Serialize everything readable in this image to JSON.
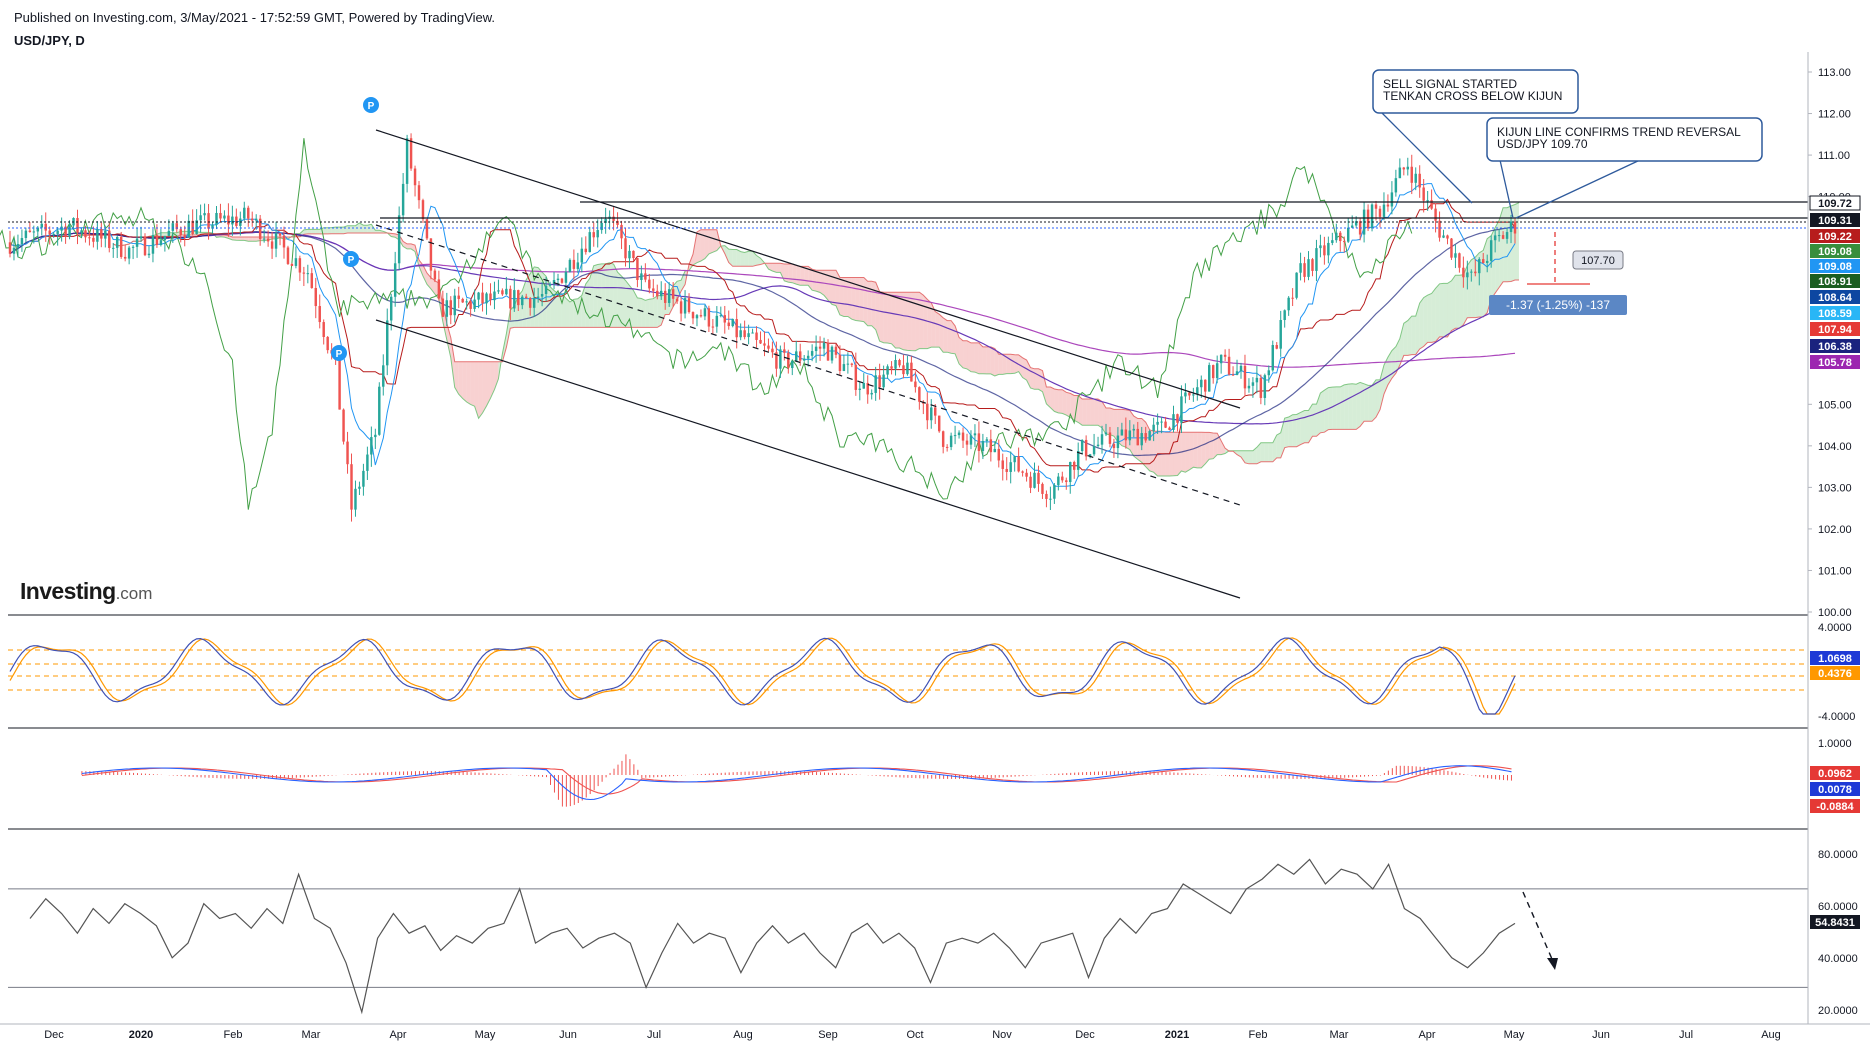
{
  "header": {
    "published": "Published on Investing.com, 3/May/2021 - 17:52:59 GMT, Powered by TradingView.",
    "symbol": "USD/JPY, D"
  },
  "logo": {
    "word": "Investing",
    "suffix": ".com"
  },
  "colors": {
    "up": "#26a69a",
    "down": "#ef5350",
    "tenkan": "#2196f3",
    "kijun": "#b71c1c",
    "lagging": "#43a047",
    "cloud_bull": "#a5d6a7",
    "cloud_bear": "#ef9a9a",
    "sma50": "#1a237e",
    "sma100": "#673ab7",
    "sma200": "#ab47bc"
  },
  "chart_data": [
    {
      "type": "candlestick",
      "panel": "price",
      "symbol": "USD/JPY",
      "interval": "D",
      "price_axis": {
        "min": 100,
        "max": 113,
        "ticks": [
          "113.00",
          "112.00",
          "111.00",
          "110.00",
          "105.00",
          "104.00",
          "103.00",
          "102.00",
          "101.00",
          "100.00"
        ]
      },
      "time_axis": [
        "Dec",
        "2020",
        "Feb",
        "Mar",
        "Apr",
        "May",
        "Jun",
        "Jul",
        "Aug",
        "Sep",
        "Oct",
        "Nov",
        "Dec",
        "2021",
        "Feb",
        "Mar",
        "Apr",
        "May",
        "Jun",
        "Jul",
        "Aug"
      ],
      "price_labels": [
        {
          "value": 109.72,
          "text": "109.72",
          "color": "#ffffff",
          "bg": "#ffffff",
          "fg": "#131722"
        },
        {
          "value": 109.31,
          "text": "109.31",
          "bg": "#131722",
          "fg": "#ffffff"
        },
        {
          "value": 109.22,
          "text": "109.22",
          "bg": "#b71c1c",
          "fg": "#ffffff"
        },
        {
          "value": 109.08,
          "text": "109.08",
          "bg": "#388e3c",
          "fg": "#ffffff"
        },
        {
          "value": 109.08,
          "text": "109.08",
          "bg": "#2196f3",
          "fg": "#ffffff"
        },
        {
          "value": 108.91,
          "text": "108.91",
          "bg": "#1b5e20",
          "fg": "#ffffff"
        },
        {
          "value": 108.64,
          "text": "108.64",
          "bg": "#0d47a1",
          "fg": "#ffffff"
        },
        {
          "value": 108.59,
          "text": "108.59",
          "bg": "#29b6f6",
          "fg": "#ffffff"
        },
        {
          "value": 107.94,
          "text": "107.94",
          "bg": "#e53935",
          "fg": "#ffffff"
        },
        {
          "value": 106.38,
          "text": "106.38",
          "bg": "#1a237e",
          "fg": "#ffffff"
        },
        {
          "value": 105.78,
          "text": "105.78",
          "bg": "#9c27b0",
          "fg": "#ffffff"
        }
      ],
      "annotations": [
        {
          "text": [
            "SELL SIGNAL STARTED",
            "TENKAN CROSS BELOW KIJUN"
          ]
        },
        {
          "text": [
            "KIJUN LINE CONFIRMS TREND REVERSAL",
            "USD/JPY 109.70"
          ]
        },
        {
          "text": [
            "107.70"
          ]
        },
        {
          "text": [
            "-1.37 (-1.25%) -137"
          ]
        }
      ],
      "event_markers": [
        "P",
        "P",
        "P"
      ]
    },
    {
      "type": "line",
      "panel": "oscillator",
      "axis_ticks": [
        "4.0000",
        "-4.0000"
      ],
      "labels": [
        {
          "text": "1.0698",
          "bg": "#1e3ad6"
        },
        {
          "text": "0.4376",
          "bg": "#ff9800"
        }
      ]
    },
    {
      "type": "line",
      "panel": "macd",
      "axis_ticks": [
        "1.0000"
      ],
      "labels": [
        {
          "text": "0.0962",
          "bg": "#e53935"
        },
        {
          "text": "0.0078",
          "bg": "#1e3ad6"
        },
        {
          "text": "-0.0884",
          "bg": "#e53935"
        }
      ]
    },
    {
      "type": "line",
      "panel": "rsi",
      "axis_ticks": [
        "80.0000",
        "60.0000",
        "40.0000",
        "20.0000"
      ],
      "bands": [
        70,
        30
      ],
      "labels": [
        {
          "text": "54.8431",
          "bg": "#131722"
        }
      ],
      "path": [
        [
          0,
          58
        ],
        [
          1,
          66
        ],
        [
          2,
          60
        ],
        [
          3,
          52
        ],
        [
          4,
          62
        ],
        [
          5,
          56
        ],
        [
          6,
          64
        ],
        [
          7,
          60
        ],
        [
          8,
          55
        ],
        [
          9,
          42
        ],
        [
          10,
          48
        ],
        [
          11,
          64
        ],
        [
          12,
          58
        ],
        [
          13,
          60
        ],
        [
          14,
          54
        ],
        [
          15,
          62
        ],
        [
          16,
          56
        ],
        [
          17,
          76
        ],
        [
          18,
          58
        ],
        [
          19,
          54
        ],
        [
          20,
          40
        ],
        [
          21,
          20
        ],
        [
          22,
          50
        ],
        [
          23,
          60
        ],
        [
          24,
          52
        ],
        [
          25,
          55
        ],
        [
          26,
          45
        ],
        [
          27,
          51
        ],
        [
          28,
          48
        ],
        [
          29,
          54
        ],
        [
          30,
          56
        ],
        [
          31,
          70
        ],
        [
          32,
          48
        ],
        [
          33,
          52
        ],
        [
          34,
          54
        ],
        [
          35,
          46
        ],
        [
          36,
          50
        ],
        [
          37,
          52
        ],
        [
          38,
          48
        ],
        [
          39,
          30
        ],
        [
          40,
          44
        ],
        [
          41,
          56
        ],
        [
          42,
          48
        ],
        [
          43,
          52
        ],
        [
          44,
          50
        ],
        [
          45,
          36
        ],
        [
          46,
          48
        ],
        [
          47,
          55
        ],
        [
          48,
          48
        ],
        [
          49,
          52
        ],
        [
          50,
          44
        ],
        [
          51,
          38
        ],
        [
          52,
          52
        ],
        [
          53,
          56
        ],
        [
          54,
          48
        ],
        [
          55,
          52
        ],
        [
          56,
          46
        ],
        [
          57,
          32
        ],
        [
          58,
          48
        ],
        [
          59,
          50
        ],
        [
          60,
          48
        ],
        [
          61,
          52
        ],
        [
          62,
          46
        ],
        [
          63,
          38
        ],
        [
          64,
          48
        ],
        [
          65,
          50
        ],
        [
          66,
          52
        ],
        [
          67,
          34
        ],
        [
          68,
          50
        ],
        [
          69,
          58
        ],
        [
          70,
          52
        ],
        [
          71,
          60
        ],
        [
          72,
          62
        ],
        [
          73,
          72
        ],
        [
          74,
          68
        ],
        [
          75,
          64
        ],
        [
          76,
          60
        ],
        [
          77,
          70
        ],
        [
          78,
          74
        ],
        [
          79,
          80
        ],
        [
          80,
          76
        ],
        [
          81,
          82
        ],
        [
          82,
          72
        ],
        [
          83,
          78
        ],
        [
          84,
          76
        ],
        [
          85,
          70
        ],
        [
          86,
          80
        ],
        [
          87,
          62
        ],
        [
          88,
          58
        ],
        [
          89,
          50
        ],
        [
          90,
          42
        ],
        [
          91,
          38
        ],
        [
          92,
          44
        ],
        [
          93,
          52
        ],
        [
          94,
          56
        ]
      ]
    }
  ]
}
